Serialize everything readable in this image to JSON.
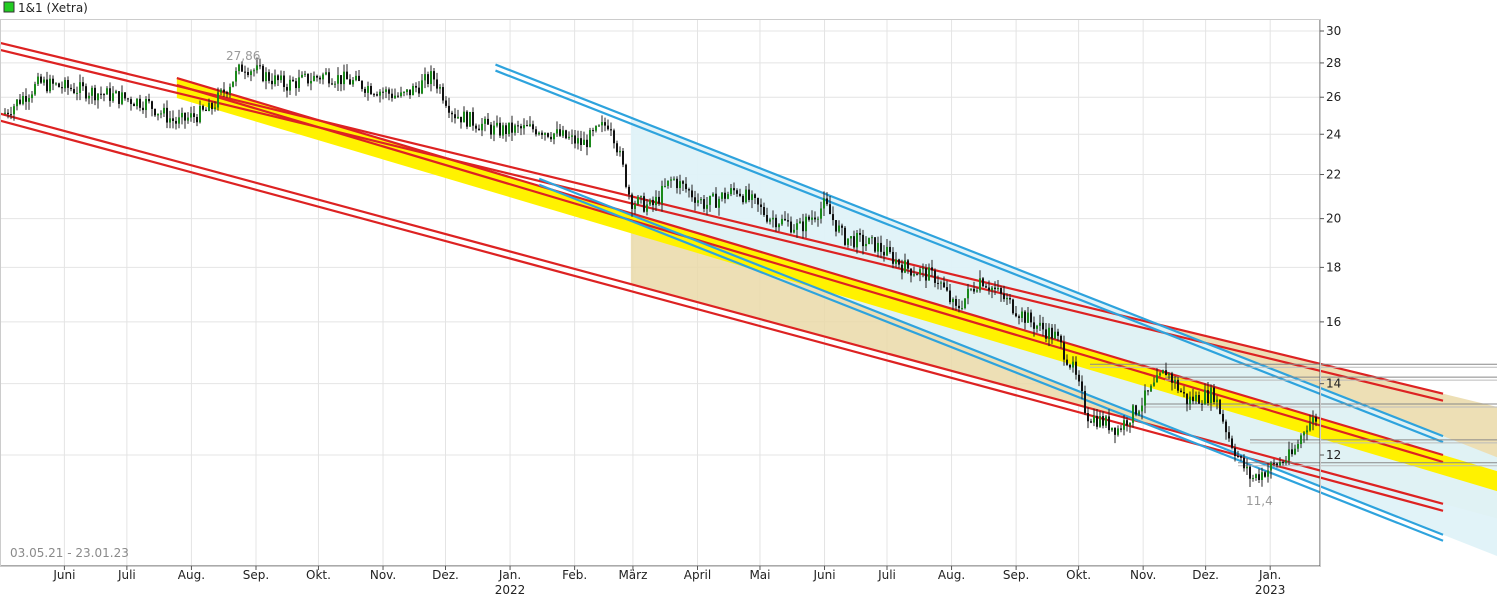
{
  "legend": {
    "label": "1&1 (Xetra)",
    "color": "#22cc22"
  },
  "date_range": "03.05.21 - 23.01.23",
  "colors": {
    "red_line": "#dd2222",
    "blue_line": "#2ea3dd",
    "yellow_band": "#fff200",
    "tan_zone": "#ead9a8",
    "lightblue_zone": "#dff2f8",
    "candle_up": "#1a8a1a",
    "candle_down": "#111111",
    "grid": "#e4e4e4"
  },
  "chart_data": {
    "type": "candlestick",
    "title": "",
    "y_axis": {
      "scale": "log",
      "ticks": [
        12,
        14,
        16,
        18,
        20,
        22,
        24,
        26,
        28,
        30
      ],
      "position": "right"
    },
    "x_axis": {
      "tick_labels": [
        "Juni",
        "Juli",
        "Aug.",
        "Sep.",
        "Okt.",
        "Nov.",
        "Dez.",
        "Jan.",
        "Feb.",
        "März",
        "April",
        "Mai",
        "Juni",
        "Juli",
        "Aug.",
        "Sep.",
        "Okt.",
        "Nov.",
        "Dez.",
        "Jan."
      ],
      "year_labels": [
        {
          "under": "Jan.",
          "index": 7,
          "text": "2022"
        },
        {
          "under": "Jan.",
          "index": 19,
          "text": "2023"
        }
      ]
    },
    "grid": true,
    "annotations": {
      "high": "27,86",
      "low": "11,4"
    },
    "price_path": [
      [
        "2021-05-03",
        25.1
      ],
      [
        "2021-05-20",
        26.8
      ],
      [
        "2021-06-15",
        26.3
      ],
      [
        "2021-07-10",
        25.7
      ],
      [
        "2021-07-25",
        24.6
      ],
      [
        "2021-08-10",
        25.3
      ],
      [
        "2021-08-26",
        27.86
      ],
      [
        "2021-09-15",
        26.7
      ],
      [
        "2021-10-05",
        27.3
      ],
      [
        "2021-10-25",
        26.6
      ],
      [
        "2021-11-10",
        26.0
      ],
      [
        "2021-11-25",
        27.2
      ],
      [
        "2021-12-05",
        25.1
      ],
      [
        "2021-12-25",
        24.2
      ],
      [
        "2022-01-15",
        24.3
      ],
      [
        "2022-02-05",
        23.5
      ],
      [
        "2022-02-18",
        24.7
      ],
      [
        "2022-02-28",
        20.8
      ],
      [
        "2022-03-10",
        20.5
      ],
      [
        "2022-03-20",
        21.8
      ],
      [
        "2022-04-05",
        20.6
      ],
      [
        "2022-04-20",
        21.3
      ],
      [
        "2022-05-05",
        20.1
      ],
      [
        "2022-05-20",
        19.6
      ],
      [
        "2022-06-01",
        20.6
      ],
      [
        "2022-06-10",
        19.2
      ],
      [
        "2022-06-25",
        18.9
      ],
      [
        "2022-07-10",
        18.0
      ],
      [
        "2022-07-25",
        17.6
      ],
      [
        "2022-08-03",
        16.4
      ],
      [
        "2022-08-15",
        17.6
      ],
      [
        "2022-08-25",
        16.9
      ],
      [
        "2022-09-08",
        16.0
      ],
      [
        "2022-09-20",
        15.5
      ],
      [
        "2022-09-28",
        14.5
      ],
      [
        "2022-10-05",
        13.1
      ],
      [
        "2022-10-20",
        12.7
      ],
      [
        "2022-10-28",
        13.2
      ],
      [
        "2022-11-05",
        13.8
      ],
      [
        "2022-11-12",
        14.4
      ],
      [
        "2022-11-22",
        13.5
      ],
      [
        "2022-12-05",
        13.7
      ],
      [
        "2022-12-12",
        12.5
      ],
      [
        "2022-12-18",
        11.8
      ],
      [
        "2022-12-23",
        11.4
      ],
      [
        "2023-01-02",
        11.7
      ],
      [
        "2023-01-12",
        12.0
      ],
      [
        "2023-01-18",
        12.8
      ],
      [
        "2023-01-23",
        13.0
      ]
    ],
    "trend_channels": [
      {
        "color": "red",
        "lines": 2,
        "from": [
          "2021-04-20",
          29.6
        ],
        "to": [
          "2023-03-25",
          13.7
        ]
      },
      {
        "color": "red",
        "lines": 2,
        "from": [
          "2021-07-25",
          27.1
        ],
        "to": [
          "2023-03-25",
          12.0
        ]
      },
      {
        "color": "red",
        "lines": 2,
        "from": [
          "2021-05-01",
          25.1
        ],
        "to": [
          "2023-03-25",
          10.8
        ]
      },
      {
        "color": "blue",
        "lines": 2,
        "from": [
          "2021-12-25",
          27.9
        ],
        "to": [
          "2023-03-25",
          12.5
        ]
      },
      {
        "color": "blue",
        "lines": 2,
        "from": [
          "2022-01-15",
          21.8
        ],
        "to": [
          "2023-03-25",
          10.1
        ]
      }
    ],
    "horizontal_levels": [
      14.6,
      14.2,
      13.4,
      12.4,
      11.8
    ]
  }
}
